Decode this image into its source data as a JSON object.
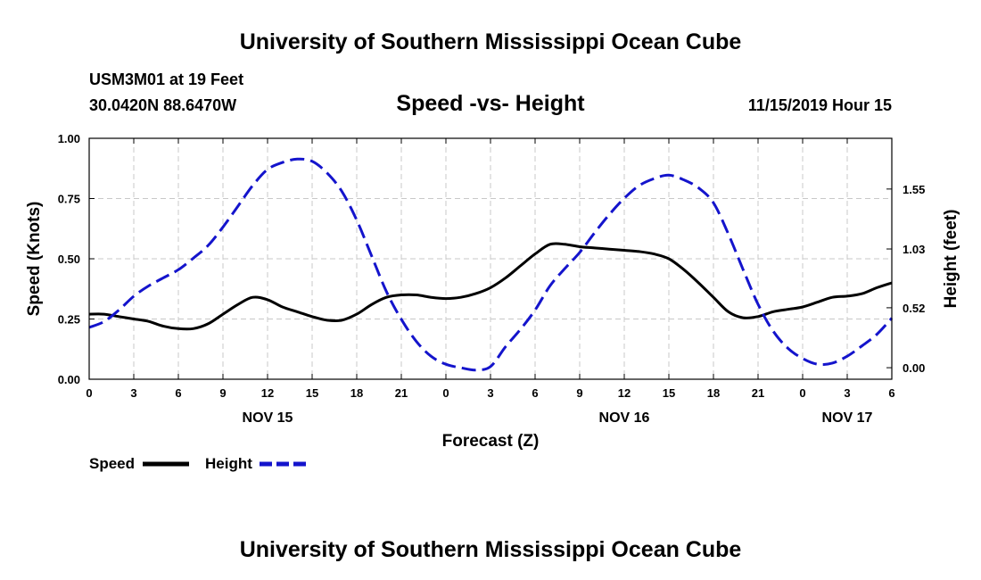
{
  "header": {
    "title": "University of Southern Mississippi Ocean Cube",
    "station": "USM3M01 at 19 Feet",
    "coords": "30.0420N 88.6470W",
    "chart_title": "Speed -vs- Height",
    "date_label": "11/15/2019 Hour 15"
  },
  "footer": {
    "title": "University of Southern Mississippi Ocean Cube"
  },
  "legend": {
    "speed_label": "Speed",
    "height_label": "Height"
  },
  "colors": {
    "speed": "#000000",
    "height": "#1414cc",
    "grid": "#c8c8c8"
  },
  "chart_data": {
    "type": "line",
    "title": "Speed -vs- Height",
    "xlabel": "Forecast (Z)",
    "ylabel": "Speed (Knots)",
    "y2label": "Height (feet)",
    "x_unit": "hours from NOV 15 00Z",
    "xlim": [
      0,
      54
    ],
    "ylim": [
      0,
      1.0
    ],
    "y2lim": [
      -0.1,
      1.99
    ],
    "x_ticks": [
      0,
      3,
      6,
      9,
      12,
      15,
      18,
      21,
      24,
      27,
      30,
      33,
      36,
      39,
      42,
      45,
      48,
      51,
      54
    ],
    "x_tick_labels": [
      "0",
      "3",
      "6",
      "9",
      "12",
      "15",
      "18",
      "21",
      "0",
      "3",
      "6",
      "9",
      "12",
      "15",
      "18",
      "21",
      "0",
      "3",
      "6"
    ],
    "date_labels": [
      {
        "x": 12,
        "label": "NOV 15"
      },
      {
        "x": 36,
        "label": "NOV 16"
      },
      {
        "x": 51,
        "label": "NOV 17"
      }
    ],
    "y_ticks": [
      0.0,
      0.25,
      0.5,
      0.75,
      1.0
    ],
    "y_tick_labels": [
      "0.00",
      "0.25",
      "0.50",
      "0.75",
      "1.00"
    ],
    "y2_ticks": [
      0.0,
      0.52,
      1.03,
      1.55
    ],
    "y2_tick_labels": [
      "0.00",
      "0.52",
      "1.03",
      "1.55"
    ],
    "grid": true,
    "legend_position": "bottom-left",
    "series": [
      {
        "name": "Speed",
        "axis": "left",
        "style": "solid",
        "x": [
          0,
          1,
          2,
          3,
          4,
          5,
          6,
          7,
          8,
          9,
          10,
          11,
          12,
          13,
          14,
          15,
          16,
          17,
          18,
          19,
          20,
          21,
          22,
          23,
          24,
          25,
          26,
          27,
          28,
          29,
          30,
          31,
          32,
          33,
          34,
          35,
          36,
          37,
          38,
          39,
          40,
          41,
          42,
          43,
          44,
          45,
          46,
          47,
          48,
          49,
          50,
          51,
          52,
          53,
          54
        ],
        "values": [
          0.27,
          0.27,
          0.26,
          0.25,
          0.24,
          0.22,
          0.21,
          0.21,
          0.23,
          0.27,
          0.31,
          0.34,
          0.33,
          0.3,
          0.28,
          0.26,
          0.245,
          0.245,
          0.27,
          0.31,
          0.34,
          0.35,
          0.35,
          0.34,
          0.335,
          0.34,
          0.355,
          0.38,
          0.42,
          0.47,
          0.52,
          0.56,
          0.56,
          0.55,
          0.545,
          0.54,
          0.535,
          0.53,
          0.52,
          0.5,
          0.455,
          0.4,
          0.34,
          0.28,
          0.255,
          0.26,
          0.28,
          0.29,
          0.3,
          0.32,
          0.34,
          0.345,
          0.355,
          0.38,
          0.4
        ]
      },
      {
        "name": "Height",
        "axis": "right",
        "style": "dashed",
        "x": [
          0,
          1,
          2,
          3,
          4,
          5,
          6,
          7,
          8,
          9,
          10,
          11,
          12,
          13,
          14,
          15,
          16,
          17,
          18,
          19,
          20,
          21,
          22,
          23,
          24,
          25,
          26,
          27,
          28,
          29,
          30,
          31,
          32,
          33,
          34,
          35,
          36,
          37,
          38,
          39,
          40,
          41,
          42,
          43,
          44,
          45,
          46,
          47,
          48,
          49,
          50,
          51,
          52,
          53,
          54
        ],
        "values": [
          0.35,
          0.4,
          0.5,
          0.62,
          0.71,
          0.78,
          0.85,
          0.95,
          1.06,
          1.22,
          1.4,
          1.58,
          1.72,
          1.78,
          1.81,
          1.79,
          1.69,
          1.53,
          1.28,
          0.97,
          0.66,
          0.42,
          0.23,
          0.1,
          0.03,
          0.0,
          -0.02,
          0.01,
          0.18,
          0.33,
          0.5,
          0.71,
          0.86,
          1.0,
          1.17,
          1.33,
          1.47,
          1.58,
          1.64,
          1.67,
          1.63,
          1.56,
          1.43,
          1.16,
          0.85,
          0.55,
          0.32,
          0.17,
          0.08,
          0.03,
          0.04,
          0.1,
          0.19,
          0.29,
          0.43
        ]
      }
    ]
  }
}
